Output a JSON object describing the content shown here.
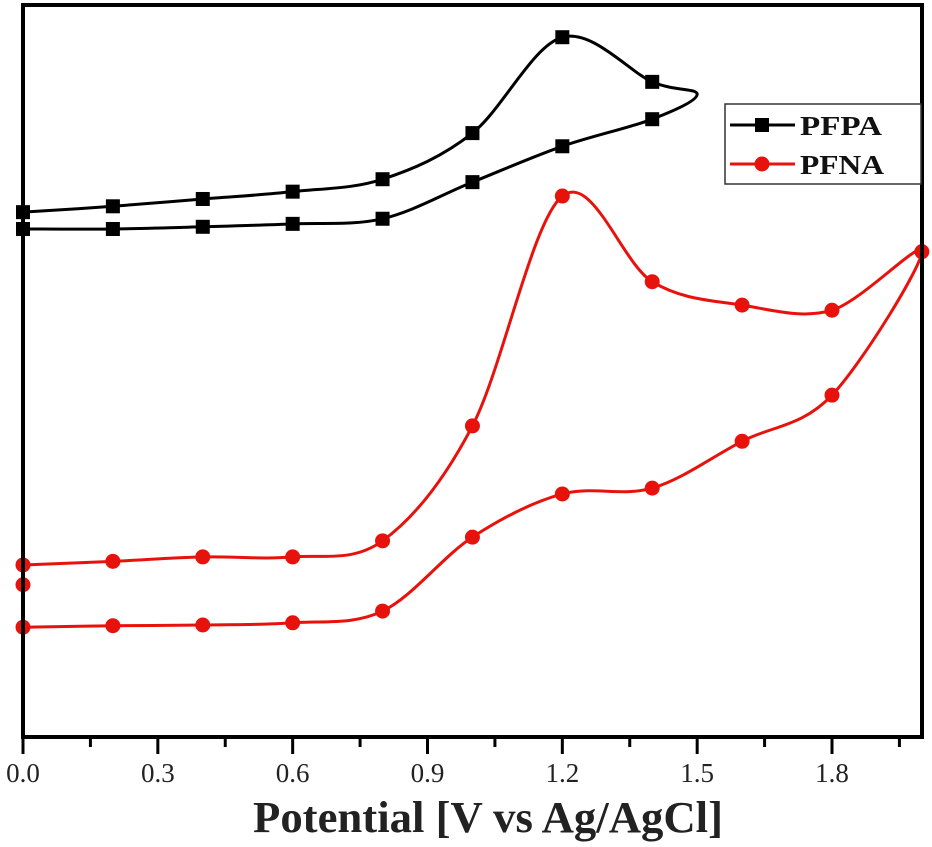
{
  "chart_data": {
    "type": "line",
    "title": "",
    "xlabel": "Potential [V vs Ag/AgCl]",
    "ylabel": "",
    "xlim": [
      0.0,
      2.0
    ],
    "ylim": [
      0,
      100
    ],
    "y_units_note_visible": false,
    "x_ticks": [
      "0.0",
      "0.3",
      "0.6",
      "0.9",
      "1.2",
      "1.5",
      "1.8"
    ],
    "grid": false,
    "legend_position": "top-right",
    "series": [
      {
        "name": "PFPA",
        "color": "#000000",
        "marker": "square",
        "points": [
          [
            0.0,
            71.7
          ],
          [
            0.2,
            72.5
          ],
          [
            0.4,
            73.5
          ],
          [
            0.6,
            74.5
          ],
          [
            0.8,
            76.2
          ],
          [
            1.0,
            82.5
          ],
          [
            1.2,
            95.6
          ],
          [
            1.4,
            89.5
          ],
          [
            1.5,
            87.8
          ],
          [
            1.4,
            84.4
          ],
          [
            1.2,
            80.7
          ],
          [
            1.0,
            75.8
          ],
          [
            0.8,
            70.8
          ],
          [
            0.6,
            70.1
          ],
          [
            0.4,
            69.7
          ],
          [
            0.2,
            69.4
          ],
          [
            0.0,
            69.4
          ]
        ],
        "markers_at": [
          0,
          1,
          2,
          3,
          4,
          5,
          6,
          7,
          9,
          10,
          11,
          12,
          13,
          14,
          15,
          16
        ]
      },
      {
        "name": "PFNA",
        "color": "#e8120c",
        "marker": "circle",
        "points": [
          [
            0.0,
            23.5
          ],
          [
            0.2,
            24.0
          ],
          [
            0.4,
            24.6
          ],
          [
            0.6,
            24.6
          ],
          [
            0.8,
            26.8
          ],
          [
            1.0,
            42.5
          ],
          [
            1.2,
            73.9
          ],
          [
            1.4,
            62.2
          ],
          [
            1.6,
            59.0
          ],
          [
            1.8,
            58.3
          ],
          [
            2.0,
            66.3
          ],
          [
            1.8,
            46.7
          ],
          [
            1.6,
            40.4
          ],
          [
            1.4,
            34.0
          ],
          [
            1.2,
            33.2
          ],
          [
            1.0,
            27.3
          ],
          [
            0.8,
            17.2
          ],
          [
            0.6,
            15.6
          ],
          [
            0.4,
            15.3
          ],
          [
            0.2,
            15.2
          ],
          [
            0.0,
            15.0
          ]
        ],
        "markers_at": [
          0,
          1,
          2,
          3,
          4,
          5,
          6,
          7,
          8,
          9,
          10,
          11,
          12,
          13,
          14,
          15,
          16,
          17,
          18,
          19,
          20
        ],
        "extra_markers": [
          [
            0.0,
            20.8
          ]
        ]
      }
    ]
  }
}
